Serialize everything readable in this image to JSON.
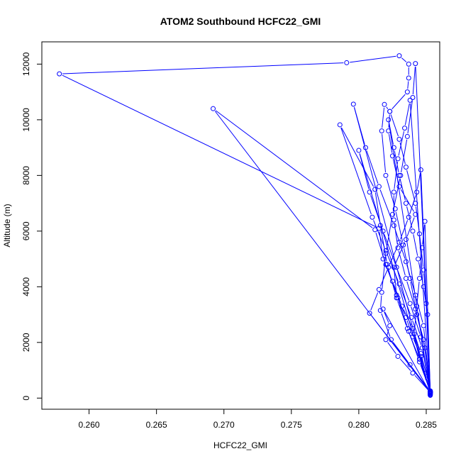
{
  "chart_data": {
    "type": "line",
    "title": "ATOM2 Southbound HCFC22_GMI",
    "xlabel": "HCFC22_GMI",
    "ylabel": "Altitude (m)",
    "xlim": [
      0.2565,
      0.286
    ],
    "ylim": [
      -400,
      12800
    ],
    "x_ticks": [
      0.26,
      0.265,
      0.27,
      0.275,
      0.28,
      0.285
    ],
    "x_tick_labels": [
      "0.260",
      "0.265",
      "0.270",
      "0.275",
      "0.280",
      "0.285"
    ],
    "y_ticks": [
      0,
      2000,
      4000,
      6000,
      8000,
      10000,
      12000
    ],
    "y_tick_labels": [
      "0",
      "2000",
      "4000",
      "6000",
      "8000",
      "10000",
      "12000"
    ],
    "grid": false,
    "legend": null,
    "series": [
      {
        "color": "#0000ff",
        "marker": "open-circle",
        "points": [
          [
            0.2853,
            120
          ],
          [
            0.2853,
            250
          ],
          [
            0.285,
            900
          ],
          [
            0.2846,
            1500
          ],
          [
            0.284,
            2200
          ],
          [
            0.2835,
            2900
          ],
          [
            0.2828,
            3700
          ],
          [
            0.2826,
            4700
          ],
          [
            0.2835,
            5700
          ],
          [
            0.2842,
            6600
          ],
          [
            0.283,
            7600
          ],
          [
            0.2825,
            8700
          ],
          [
            0.2822,
            9600
          ],
          [
            0.2823,
            10300
          ],
          [
            0.2836,
            11000
          ],
          [
            0.2837,
            11500
          ],
          [
            0.2837,
            12000
          ],
          [
            0.283,
            12300
          ],
          [
            0.2791,
            12050
          ],
          [
            0.2578,
            11650
          ],
          [
            0.2815,
            6100
          ],
          [
            0.2818,
            5000
          ],
          [
            0.2825,
            4200
          ],
          [
            0.2832,
            3300
          ],
          [
            0.284,
            2500
          ],
          [
            0.2846,
            1600
          ],
          [
            0.2851,
            700
          ],
          [
            0.2853,
            200
          ],
          [
            0.2853,
            150
          ],
          [
            0.2849,
            1800
          ],
          [
            0.2843,
            3000
          ],
          [
            0.2838,
            4300
          ],
          [
            0.2833,
            5500
          ],
          [
            0.2827,
            6800
          ],
          [
            0.282,
            8000
          ],
          [
            0.2817,
            9600
          ],
          [
            0.2819,
            10550
          ],
          [
            0.2823,
            10300
          ],
          [
            0.283,
            9300
          ],
          [
            0.2835,
            8300
          ],
          [
            0.2842,
            7000
          ],
          [
            0.2845,
            5900
          ],
          [
            0.2848,
            4600
          ],
          [
            0.285,
            3400
          ],
          [
            0.2853,
            180
          ],
          [
            0.2853,
            260
          ],
          [
            0.2845,
            1400
          ],
          [
            0.2836,
            2500
          ],
          [
            0.2828,
            3600
          ],
          [
            0.2821,
            4800
          ],
          [
            0.2816,
            6200
          ],
          [
            0.2812,
            7500
          ],
          [
            0.2786,
            9820
          ],
          [
            0.281,
            6500
          ],
          [
            0.282,
            5300
          ],
          [
            0.283,
            4100
          ],
          [
            0.2839,
            2900
          ],
          [
            0.2847,
            1800
          ],
          [
            0.2853,
            220
          ],
          [
            0.2853,
            200
          ],
          [
            0.2692,
            10400
          ],
          [
            0.2812,
            6050
          ],
          [
            0.282,
            4800
          ],
          [
            0.2829,
            3600
          ],
          [
            0.2837,
            2400
          ],
          [
            0.2845,
            1300
          ],
          [
            0.2853,
            240
          ],
          [
            0.2853,
            120
          ],
          [
            0.2842,
            12020
          ],
          [
            0.284,
            10800
          ],
          [
            0.2836,
            9400
          ],
          [
            0.2831,
            8000
          ],
          [
            0.2825,
            6600
          ],
          [
            0.282,
            5200
          ],
          [
            0.2817,
            3800
          ],
          [
            0.2816,
            3150
          ],
          [
            0.2824,
            2100
          ],
          [
            0.2838,
            1200
          ],
          [
            0.2853,
            200
          ],
          [
            0.2853,
            160
          ],
          [
            0.2796,
            10560
          ],
          [
            0.2805,
            9000
          ],
          [
            0.2815,
            7600
          ],
          [
            0.2826,
            6200
          ],
          [
            0.2835,
            4900
          ],
          [
            0.2842,
            3700
          ],
          [
            0.2848,
            2600
          ],
          [
            0.2853,
            210
          ],
          [
            0.2853,
            190
          ],
          [
            0.28,
            8900
          ],
          [
            0.2808,
            7400
          ],
          [
            0.2818,
            6000
          ],
          [
            0.2828,
            4700
          ],
          [
            0.2838,
            3400
          ],
          [
            0.2846,
            2200
          ],
          [
            0.2853,
            230
          ],
          [
            0.2853,
            170
          ],
          [
            0.2838,
            10700
          ],
          [
            0.2834,
            9700
          ],
          [
            0.2829,
            8600
          ],
          [
            0.2826,
            7400
          ],
          [
            0.2826,
            6400
          ],
          [
            0.2829,
            5400
          ],
          [
            0.2835,
            4300
          ],
          [
            0.2842,
            3200
          ],
          [
            0.2848,
            2100
          ],
          [
            0.2853,
            200
          ],
          [
            0.2853,
            100
          ],
          [
            0.2822,
            10000
          ],
          [
            0.2826,
            9000
          ],
          [
            0.283,
            8000
          ],
          [
            0.2835,
            7000
          ],
          [
            0.284,
            6000
          ],
          [
            0.2844,
            5000
          ],
          [
            0.2848,
            4000
          ],
          [
            0.2851,
            3000
          ],
          [
            0.2853,
            220
          ],
          [
            0.2853,
            250
          ],
          [
            0.2808,
            3050
          ],
          [
            0.2815,
            3900
          ],
          [
            0.2822,
            4700
          ],
          [
            0.283,
            5600
          ],
          [
            0.2837,
            6500
          ],
          [
            0.2843,
            7400
          ],
          [
            0.2846,
            8200
          ],
          [
            0.2853,
            200
          ],
          [
            0.2853,
            180
          ],
          [
            0.2818,
            3200
          ],
          [
            0.2823,
            2600
          ],
          [
            0.282,
            2100
          ],
          [
            0.2829,
            1500
          ],
          [
            0.284,
            900
          ],
          [
            0.2853,
            210
          ],
          [
            0.2853,
            160
          ],
          [
            0.2849,
            6350
          ],
          [
            0.2847,
            5400
          ],
          [
            0.2845,
            4300
          ],
          [
            0.2843,
            3300
          ],
          [
            0.2841,
            2300
          ],
          [
            0.2845,
            1400
          ],
          [
            0.2853,
            200
          ]
        ]
      }
    ]
  }
}
